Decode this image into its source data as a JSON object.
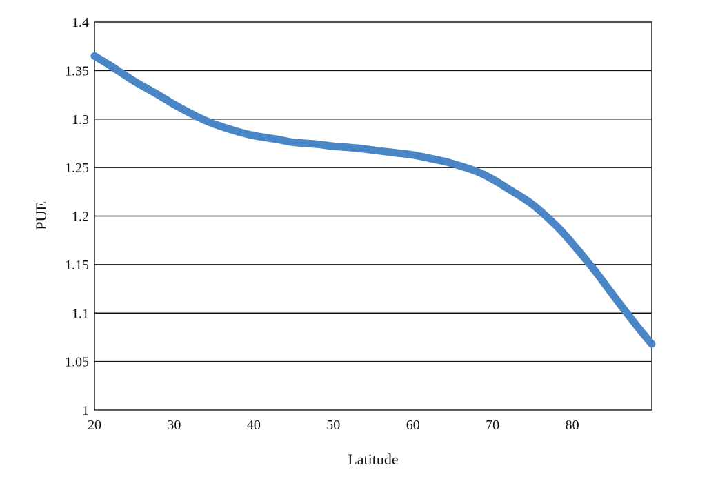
{
  "chart_data": {
    "type": "line",
    "title": "",
    "xlabel": "Latitude",
    "ylabel": "PUE",
    "xlim": [
      20,
      90
    ],
    "ylim": [
      1,
      1.4
    ],
    "xticks": [
      20,
      30,
      40,
      50,
      60,
      70,
      80
    ],
    "yticks": [
      1,
      1.05,
      1.1,
      1.15,
      1.2,
      1.25,
      1.3,
      1.35,
      1.4
    ],
    "grid": "horizontal",
    "legend": "none",
    "series": [
      {
        "color": "#4a86c5",
        "x": [
          20,
          22,
          25,
          28,
          30,
          33,
          35,
          38,
          40,
          43,
          45,
          48,
          50,
          53,
          55,
          58,
          60,
          63,
          65,
          68,
          70,
          72,
          75,
          78,
          80,
          83,
          85,
          88,
          90
        ],
        "y": [
          1.365,
          1.355,
          1.339,
          1.325,
          1.315,
          1.302,
          1.295,
          1.287,
          1.283,
          1.279,
          1.276,
          1.274,
          1.272,
          1.27,
          1.268,
          1.265,
          1.263,
          1.258,
          1.254,
          1.246,
          1.238,
          1.228,
          1.212,
          1.19,
          1.172,
          1.142,
          1.12,
          1.088,
          1.068
        ]
      }
    ]
  }
}
